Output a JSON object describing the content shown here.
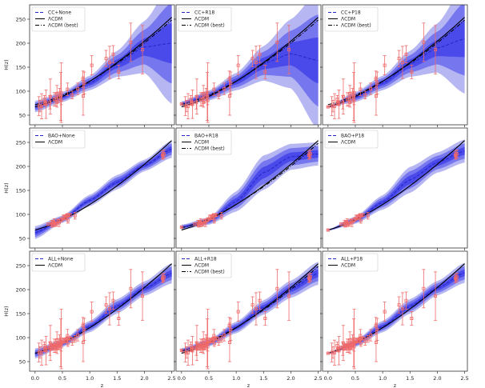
{
  "figure_title": "",
  "chart_data": {
    "type": "line",
    "layout": "3x3 grid of panels, shared axes",
    "shared_x": {
      "label": "z",
      "range": [
        -0.1,
        2.55
      ],
      "ticks": [
        0.0,
        0.5,
        1.0,
        1.5,
        2.0,
        2.5
      ],
      "tick_labels": [
        "0.0",
        "0.5",
        "1.0",
        "1.5",
        "2.0",
        "2.5"
      ]
    },
    "shared_y": {
      "label": "H(z)",
      "range": [
        30,
        280
      ],
      "ticks": [
        50,
        100,
        150,
        200,
        250
      ],
      "tick_labels": [
        "50",
        "100",
        "150",
        "200",
        "250"
      ]
    },
    "legend_labels": {
      "lcdm": "ΛCDM",
      "lcdm_best": "ΛCDM (best)"
    },
    "colors": {
      "band_outer": "#b6b6f2",
      "band_inner": "#7676ee",
      "band_core": "#4a4aea",
      "reconstruction": "#2525c8",
      "lcdm": "#000000",
      "data_points": "#f06a6a",
      "axes": "#333333"
    },
    "lcdm": {
      "H0": 67.4,
      "Om": 0.315
    },
    "lcdm_best": {
      "H0": 72.0,
      "Om": 0.26
    },
    "cc_data": {
      "z": [
        0.07,
        0.09,
        0.12,
        0.17,
        0.179,
        0.199,
        0.2,
        0.27,
        0.28,
        0.352,
        0.3802,
        0.4,
        0.4004,
        0.4247,
        0.4497,
        0.47,
        0.4783,
        0.48,
        0.593,
        0.68,
        0.781,
        0.875,
        0.88,
        0.9,
        1.037,
        1.3,
        1.363,
        1.43,
        1.53,
        1.75,
        1.965
      ],
      "H": [
        69,
        69,
        68.6,
        83,
        75,
        75,
        72.9,
        77,
        88.8,
        83,
        83,
        95,
        77,
        87.1,
        92.8,
        89,
        80.9,
        97,
        104,
        92,
        105,
        125,
        90,
        117,
        154,
        168,
        160,
        177,
        140,
        202,
        186.5
      ],
      "err": [
        19.6,
        12,
        26.2,
        8,
        4,
        5,
        29.6,
        14,
        36.6,
        14,
        13.5,
        17,
        10.2,
        11.2,
        12.9,
        50,
        9,
        62,
        13,
        8,
        12,
        17,
        40,
        23,
        20,
        17,
        33.6,
        18,
        14,
        40,
        50.4
      ]
    },
    "bao_data": {
      "z": [
        0.24,
        0.3,
        0.31,
        0.34,
        0.35,
        0.36,
        0.38,
        0.4,
        0.43,
        0.44,
        0.48,
        0.51,
        0.52,
        0.56,
        0.57,
        0.59,
        0.6,
        0.61,
        0.64,
        0.73,
        2.33,
        2.34,
        2.36
      ],
      "H": [
        79.7,
        81.7,
        78.2,
        83.8,
        82.7,
        79.9,
        81.5,
        82.0,
        86.5,
        82.6,
        88.8,
        90.4,
        94.4,
        93.3,
        96.8,
        98.5,
        87.9,
        97.3,
        98.8,
        97.3,
        224,
        222,
        226
      ],
      "err": [
        2.7,
        6.2,
        4.7,
        3.7,
        8.4,
        3.3,
        1.9,
        6.6,
        3.7,
        7.8,
        4.3,
        1.9,
        4.5,
        4.2,
        3.4,
        3.3,
        6.1,
        2.1,
        3.2,
        7.0,
        8,
        7,
        8
      ]
    },
    "anchor_points": {
      "R18": {
        "z": 0,
        "H": 73.5,
        "err": 1.7
      },
      "P18": {
        "z": 0,
        "H": 67.4,
        "err": 0.5
      }
    },
    "panels": [
      {
        "legend_label": "CC+None",
        "data": [
          "cc"
        ],
        "anchor": null,
        "ref_curves": [
          "lcdm",
          "lcdm_best"
        ],
        "z_knots": [
          0,
          0.5,
          1,
          1.5,
          2,
          2.5
        ],
        "mean": [
          68,
          88,
          117,
          157,
          192,
          200
        ],
        "sigma": [
          4,
          3.5,
          5,
          9,
          18,
          42
        ]
      },
      {
        "legend_label": "CC+R18",
        "data": [
          "cc"
        ],
        "anchor": "R18",
        "ref_curves": [
          "lcdm",
          "lcdm_best"
        ],
        "z_knots": [
          0,
          0.5,
          1,
          1.5,
          2,
          2.5
        ],
        "mean": [
          73.5,
          91,
          120,
          158,
          178,
          164
        ],
        "sigma": [
          1.7,
          3.5,
          6,
          12,
          24,
          48
        ]
      },
      {
        "legend_label": "CC+P18",
        "data": [
          "cc"
        ],
        "anchor": "P18",
        "ref_curves": [
          "lcdm",
          "lcdm_best"
        ],
        "z_knots": [
          0,
          0.5,
          1,
          1.5,
          2,
          2.5
        ],
        "mean": [
          67.4,
          88,
          117,
          157,
          190,
          209
        ],
        "sigma": [
          0.5,
          3.5,
          5,
          9,
          17,
          38
        ]
      },
      {
        "legend_label": "BAO+None",
        "data": [
          "bao"
        ],
        "anchor": null,
        "ref_curves": [
          "lcdm"
        ],
        "z_knots": [
          0,
          0.5,
          1,
          1.5,
          2,
          2.5
        ],
        "mean": [
          62,
          90,
          129,
          167,
          202,
          236
        ],
        "sigma": [
          4.5,
          2.5,
          4,
          5,
          4,
          6
        ]
      },
      {
        "legend_label": "BAO+R18",
        "data": [
          "bao"
        ],
        "anchor": "R18",
        "ref_curves": [
          "lcdm",
          "lcdm_best"
        ],
        "z_knots": [
          0,
          0.5,
          1,
          1.5,
          2,
          2.5
        ],
        "mean": [
          73.5,
          86,
          127,
          187,
          220,
          226
        ],
        "sigma": [
          1.7,
          2.5,
          7,
          12,
          9,
          8
        ]
      },
      {
        "legend_label": "BAO+P18",
        "data": [
          "bao"
        ],
        "anchor": "P18",
        "ref_curves": [
          "lcdm"
        ],
        "z_knots": [
          0,
          0.5,
          1,
          1.5,
          2,
          2.5
        ],
        "mean": [
          67.4,
          88,
          125,
          172,
          208,
          232
        ],
        "sigma": [
          0.5,
          2.5,
          5,
          9,
          7,
          8
        ]
      },
      {
        "legend_label": "ALL+None",
        "data": [
          "cc",
          "bao"
        ],
        "anchor": null,
        "ref_curves": [
          "lcdm"
        ],
        "z_knots": [
          0,
          0.5,
          1,
          1.5,
          2,
          2.5
        ],
        "mean": [
          67,
          88,
          123,
          165,
          202,
          234
        ],
        "sigma": [
          3.5,
          2.5,
          4,
          5,
          5,
          7
        ]
      },
      {
        "legend_label": "ALL+R18",
        "data": [
          "cc",
          "bao"
        ],
        "anchor": "R18",
        "ref_curves": [
          "lcdm",
          "lcdm_best"
        ],
        "z_knots": [
          0,
          0.5,
          1,
          1.5,
          2,
          2.5
        ],
        "mean": [
          73,
          89,
          121,
          163,
          201,
          234
        ],
        "sigma": [
          1.7,
          2.5,
          4,
          5,
          6,
          8
        ]
      },
      {
        "legend_label": "ALL+P18",
        "data": [
          "cc",
          "bao"
        ],
        "anchor": "P18",
        "ref_curves": [
          "lcdm"
        ],
        "z_knots": [
          0,
          0.5,
          1,
          1.5,
          2,
          2.5
        ],
        "mean": [
          67.4,
          88,
          123,
          165,
          203,
          235
        ],
        "sigma": [
          0.5,
          2.5,
          4,
          5,
          5,
          7
        ]
      }
    ]
  }
}
